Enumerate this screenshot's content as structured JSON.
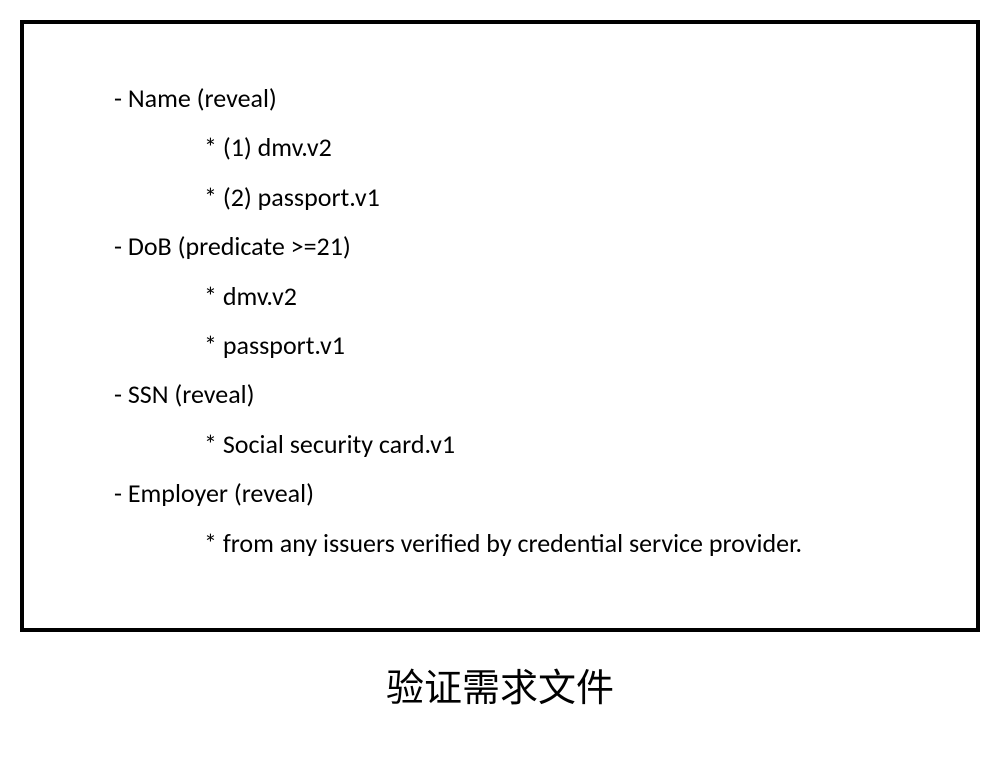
{
  "document": {
    "attributes": [
      {
        "label": "- Name (reveal)",
        "sources": [
          "* (1) dmv.v2",
          "* (2) passport.v1"
        ]
      },
      {
        "label": "- DoB (predicate >=21)",
        "sources": [
          "* dmv.v2",
          "* passport.v1"
        ]
      },
      {
        "label": "- SSN (reveal)",
        "sources": [
          "* Social security card.v1"
        ]
      },
      {
        "label": "- Employer (reveal)",
        "sources": [
          "* from any issuers verified by credential service provider."
        ]
      }
    ]
  },
  "caption": "验证需求文件",
  "style": {
    "box_border_color": "#000000",
    "box_border_width": 4,
    "background_color": "#ffffff",
    "text_color": "#000000",
    "body_fontsize": 26,
    "caption_fontsize": 38
  }
}
